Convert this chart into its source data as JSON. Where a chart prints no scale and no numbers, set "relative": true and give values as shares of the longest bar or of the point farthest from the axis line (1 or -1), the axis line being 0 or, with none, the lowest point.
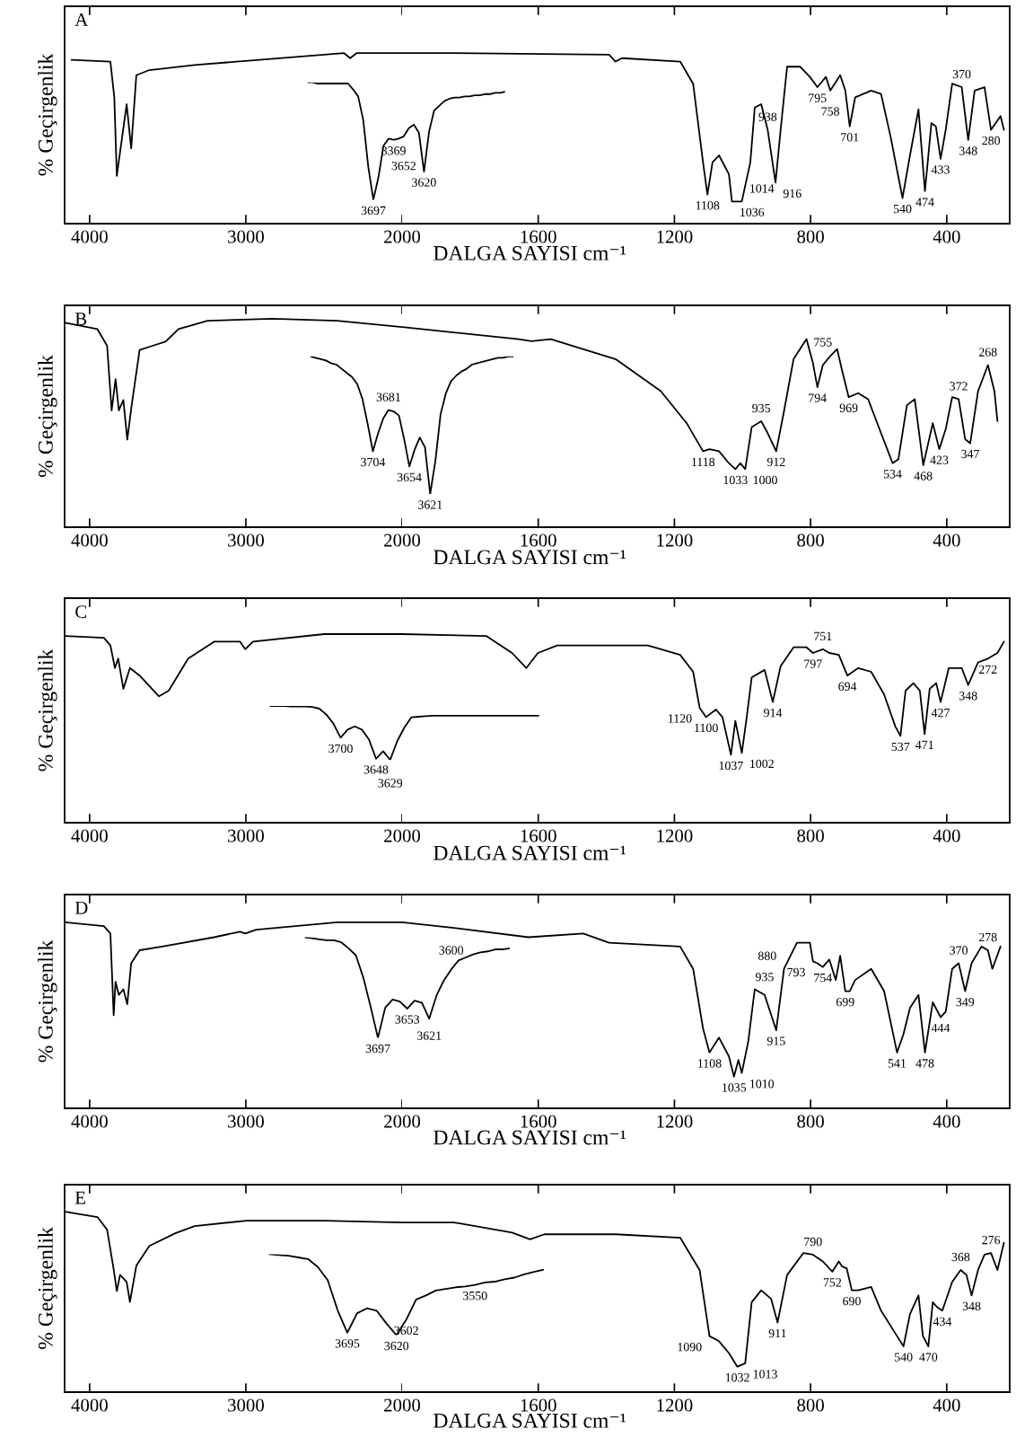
{
  "chart_data": [
    {
      "type": "line",
      "title": "A",
      "ylabel": "% Geçirgenlik",
      "relative": true,
      "xlim": [
        4160,
        2000
      ],
      "xticks": [
        4000,
        3000,
        2000
      ],
      "series": [
        {
          "color": "#000000",
          "x": [
            4116,
            3867,
            3842,
            3826,
            3763,
            3734,
            3701,
            3618,
            3328,
            2913,
            2373,
            2332,
            2290,
            2000
          ],
          "values": [
            0.96,
            0.95,
            0.74,
            0.28,
            0.7,
            0.44,
            0.87,
            0.9,
            0.93,
            0.96,
            1.0,
            0.97,
            1.0,
            1.0
          ]
        }
      ]
    },
    {
      "type": "line",
      "xlabel": "DALGA SAYISI cm⁻¹",
      "relative": true,
      "xlim": [
        2000,
        215
      ],
      "xticks": [
        1600,
        1200,
        800,
        400
      ],
      "series": [
        {
          "color": "#000000",
          "x": [
            2000,
            1848,
            1392,
            1373,
            1354,
            1183,
            1145,
            1116,
            1103,
            1088,
            1069,
            1040,
            1031,
            1002,
            977,
            964,
            945,
            926,
            903,
            888,
            869,
            831,
            802,
            780,
            755,
            742,
            713,
            698,
            685,
            669,
            622,
            593,
            565,
            530,
            508,
            483,
            464,
            445,
            432,
            418,
            403,
            384,
            356,
            337,
            318,
            289,
            270,
            242,
            232
          ],
          "values": [
            1.0,
            1.0,
            0.99,
            0.95,
            0.97,
            0.95,
            0.82,
            0.36,
            0.17,
            0.36,
            0.4,
            0.29,
            0.13,
            0.13,
            0.36,
            0.68,
            0.7,
            0.55,
            0.24,
            0.55,
            0.92,
            0.92,
            0.86,
            0.8,
            0.86,
            0.78,
            0.87,
            0.78,
            0.57,
            0.74,
            0.78,
            0.76,
            0.51,
            0.15,
            0.4,
            0.67,
            0.19,
            0.59,
            0.57,
            0.38,
            0.55,
            0.82,
            0.8,
            0.49,
            0.78,
            0.8,
            0.55,
            0.63,
            0.55
          ]
        }
      ],
      "annotations": [
        {
          "text": "1108",
          "x": 1103,
          "y": 0.17
        },
        {
          "text": "1036",
          "x": 1031,
          "y": 0.13
        },
        {
          "text": "1014",
          "x": 1002,
          "y": 0.13
        },
        {
          "text": "938",
          "x": 926,
          "y": 0.55
        },
        {
          "text": "916",
          "x": 903,
          "y": 0.24
        },
        {
          "text": "795",
          "x": 780,
          "y": 0.8
        },
        {
          "text": "758",
          "x": 742,
          "y": 0.78
        },
        {
          "text": "701",
          "x": 685,
          "y": 0.57
        },
        {
          "text": "540",
          "x": 530,
          "y": 0.15
        },
        {
          "text": "474",
          "x": 464,
          "y": 0.19
        },
        {
          "text": "433",
          "x": 418,
          "y": 0.38
        },
        {
          "text": "348",
          "x": 337,
          "y": 0.49
        },
        {
          "text": "370",
          "x": 356,
          "y": 0.8
        },
        {
          "text": "280",
          "x": 270,
          "y": 0.55
        }
      ]
    },
    {
      "type": "line",
      "relative": true,
      "categories": [
        null,
        null,
        null,
        null,
        null,
        null,
        null,
        null,
        null,
        null,
        null,
        null,
        null,
        null,
        null,
        null,
        null,
        null,
        null,
        null,
        null,
        null,
        null,
        null,
        null,
        null,
        null,
        null,
        null,
        null,
        null,
        null,
        null,
        null,
        null,
        null,
        null,
        null,
        null,
        null
      ],
      "series": [
        {
          "color": "#000000",
          "values": [
            1.0,
            1.0,
            0.99,
            0.99,
            0.99,
            0.99,
            0.99,
            0.99,
            0.99,
            0.94,
            0.88,
            0.68,
            0.28,
            0,
            0.19,
            0.46,
            0.52,
            0.51,
            0.52,
            0.54,
            0.61,
            0.64,
            0.57,
            0.24,
            0.58,
            0.76,
            0.8,
            0.84,
            0.86,
            0.87,
            0.87,
            0.88,
            0.88,
            0.89,
            0.89,
            0.9,
            0.9,
            0.91,
            0.91,
            0.92
          ]
        }
      ],
      "annotations": [
        {
          "text": "3697",
          "y": 0
        },
        {
          "text": "3369",
          "y": 0.51
        },
        {
          "text": "3652",
          "y": 0.54
        },
        {
          "text": "3620",
          "y": 0.24
        }
      ]
    },
    {
      "type": "line",
      "title": "B",
      "ylabel": "% Geçirgenlik",
      "relative": true,
      "xlim": [
        4160,
        2000
      ],
      "xticks": [
        4000,
        3000,
        2000
      ],
      "series": [
        {
          "color": "#000000",
          "x": [
            4157,
            3950,
            3888,
            3859,
            3834,
            3813,
            3784,
            3759,
            3730,
            3680,
            3597,
            3514,
            3431,
            3245,
            2830,
            2415,
            2000
          ],
          "values": [
            0.98,
            0.95,
            0.87,
            0.56,
            0.71,
            0.56,
            0.61,
            0.42,
            0.59,
            0.85,
            0.87,
            0.89,
            0.95,
            0.99,
            1.0,
            0.99,
            0.96
          ]
        }
      ]
    },
    {
      "type": "line",
      "xlabel": "DALGA SAYISI cm⁻¹",
      "relative": true,
      "xlim": [
        2000,
        215
      ],
      "xticks": [
        1600,
        1200,
        800,
        400
      ],
      "series": [
        {
          "color": "#000000",
          "x": [
            2000,
            1943,
            1658,
            1620,
            1563,
            1373,
            1240,
            1164,
            1116,
            1097,
            1069,
            1040,
            1021,
            1006,
            992,
            973,
            945,
            926,
            901,
            878,
            850,
            812,
            793,
            780,
            764,
            745,
            722,
            707,
            688,
            660,
            631,
            593,
            559,
            542,
            517,
            494,
            469,
            441,
            422,
            403,
            384,
            365,
            346,
            331,
            308,
            279,
            260,
            251
          ],
          "values": [
            1.0,
            0.99,
            0.94,
            0.93,
            0.94,
            0.84,
            0.68,
            0.52,
            0.38,
            0.39,
            0.38,
            0.32,
            0.29,
            0.32,
            0.29,
            0.5,
            0.53,
            0.47,
            0.38,
            0.58,
            0.84,
            0.94,
            0.82,
            0.7,
            0.81,
            0.85,
            0.89,
            0.78,
            0.65,
            0.67,
            0.64,
            0.47,
            0.32,
            0.34,
            0.61,
            0.64,
            0.31,
            0.52,
            0.39,
            0.49,
            0.65,
            0.64,
            0.44,
            0.42,
            0.68,
            0.81,
            0.68,
            0.53
          ]
        }
      ],
      "annotations": [
        {
          "text": "1118",
          "x": 1116,
          "y": 0.38
        },
        {
          "text": "1033",
          "x": 1021,
          "y": 0.29
        },
        {
          "text": "1000",
          "x": 992,
          "y": 0.29
        },
        {
          "text": "912",
          "x": 901,
          "y": 0.38
        },
        {
          "text": "935",
          "x": 945,
          "y": 0.53
        },
        {
          "text": "794",
          "x": 780,
          "y": 0.7
        },
        {
          "text": "969",
          "x": 688,
          "y": 0.65
        },
        {
          "text": "755",
          "x": 764,
          "y": 0.81
        },
        {
          "text": "534",
          "x": 559,
          "y": 0.32
        },
        {
          "text": "468",
          "x": 469,
          "y": 0.31
        },
        {
          "text": "423",
          "x": 422,
          "y": 0.39
        },
        {
          "text": "347",
          "x": 331,
          "y": 0.42
        },
        {
          "text": "372",
          "x": 365,
          "y": 0.64
        },
        {
          "text": "268",
          "x": 279,
          "y": 0.81
        }
      ]
    },
    {
      "type": "line",
      "relative": true,
      "categories": [
        null,
        null,
        null,
        null,
        null,
        null,
        null,
        null,
        null,
        null,
        null,
        null,
        null,
        null,
        null,
        null,
        null,
        null,
        null,
        null,
        null,
        null,
        null,
        null,
        null,
        null,
        null,
        null,
        null,
        null,
        null,
        null,
        null,
        null,
        null,
        null,
        null,
        null,
        null,
        null
      ],
      "series": [
        {
          "color": "#000000",
          "values": [
            1.0,
            0.99,
            0.98,
            0.97,
            0.95,
            0.94,
            0.91,
            0.88,
            0.85,
            0.8,
            0.69,
            0.51,
            0.31,
            0.44,
            0.55,
            0.61,
            0.6,
            0.57,
            0.4,
            0.2,
            0.32,
            0.41,
            0.34,
            0,
            0.24,
            0.58,
            0.73,
            0.82,
            0.86,
            0.89,
            0.91,
            0.94,
            0.95,
            0.96,
            0.97,
            0.98,
            0.99,
            0.99,
            1.0,
            1.0
          ]
        }
      ],
      "annotations": [
        {
          "text": "3704",
          "y": 0.31
        },
        {
          "text": "3681",
          "y": 0.61
        },
        {
          "text": "3654",
          "y": 0.2
        },
        {
          "text": "3621",
          "y": 0
        }
      ]
    },
    {
      "type": "line",
      "title": "C",
      "ylabel": "% Geçirgenlik",
      "relative": true,
      "xlim": [
        4160,
        2000
      ],
      "xticks": [
        4000,
        3000,
        2000
      ],
      "series": [
        {
          "color": "#000000",
          "x": [
            4157,
            3909,
            3867,
            3838,
            3817,
            3784,
            3742,
            3680,
            3556,
            3494,
            3369,
            3203,
            3037,
            3004,
            2954,
            2498,
            2000
          ],
          "values": [
            0.99,
            0.98,
            0.94,
            0.82,
            0.87,
            0.71,
            0.82,
            0.78,
            0.67,
            0.7,
            0.87,
            0.96,
            0.96,
            0.92,
            0.96,
            1.0,
            1.0
          ]
        }
      ]
    },
    {
      "type": "line",
      "xlabel": "DALGA SAYISI cm⁻¹",
      "relative": true,
      "xlim": [
        2000,
        215
      ],
      "xticks": [
        1600,
        1200,
        800,
        400
      ],
      "series": [
        {
          "color": "#000000",
          "x": [
            2000,
            1753,
            1677,
            1635,
            1601,
            1544,
            1278,
            1183,
            1145,
            1126,
            1107,
            1078,
            1059,
            1034,
            1021,
            1002,
            989,
            973,
            935,
            911,
            888,
            850,
            812,
            793,
            764,
            745,
            717,
            692,
            660,
            622,
            584,
            551,
            536,
            521,
            498,
            479,
            465,
            450,
            431,
            418,
            394,
            356,
            337,
            308,
            279,
            251,
            232
          ],
          "values": [
            1.0,
            0.99,
            0.9,
            0.82,
            0.9,
            0.94,
            0.94,
            0.89,
            0.8,
            0.61,
            0.56,
            0.6,
            0.56,
            0.36,
            0.54,
            0.37,
            0.54,
            0.77,
            0.81,
            0.64,
            0.83,
            0.93,
            0.93,
            0.9,
            0.92,
            0.9,
            0.89,
            0.78,
            0.82,
            0.8,
            0.68,
            0.51,
            0.46,
            0.7,
            0.74,
            0.7,
            0.47,
            0.71,
            0.74,
            0.64,
            0.82,
            0.82,
            0.73,
            0.85,
            0.87,
            0.9,
            0.96
          ]
        }
      ],
      "annotations": [
        {
          "text": "1120",
          "x": 1126,
          "y": 0.61
        },
        {
          "text": "1100",
          "x": 1107,
          "y": 0.56
        },
        {
          "text": "1037",
          "x": 1034,
          "y": 0.36
        },
        {
          "text": "1002",
          "x": 1002,
          "y": 0.37
        },
        {
          "text": "914",
          "x": 911,
          "y": 0.64
        },
        {
          "text": "797",
          "x": 793,
          "y": 0.9
        },
        {
          "text": "751",
          "x": 764,
          "y": 0.92
        },
        {
          "text": "694",
          "x": 692,
          "y": 0.78
        },
        {
          "text": "537",
          "x": 536,
          "y": 0.46
        },
        {
          "text": "471",
          "x": 465,
          "y": 0.47
        },
        {
          "text": "427",
          "x": 418,
          "y": 0.64
        },
        {
          "text": "348",
          "x": 337,
          "y": 0.73
        },
        {
          "text": "272",
          "x": 279,
          "y": 0.87
        }
      ]
    },
    {
      "type": "line",
      "relative": true,
      "categories": [
        null,
        null,
        null,
        null,
        null,
        null,
        null,
        null,
        null,
        null,
        null,
        null,
        null,
        null,
        null,
        null,
        null,
        null,
        null,
        null,
        null,
        null,
        null,
        null,
        null,
        null,
        null,
        null,
        null,
        null,
        null,
        null,
        null,
        null,
        null,
        null,
        null,
        null,
        null
      ],
      "series": [
        {
          "color": "#000000",
          "values": [
            1.0,
            1.0,
            1.0,
            0.99,
            0.99,
            0.99,
            0.98,
            0.95,
            0.84,
            0.67,
            0.41,
            0.56,
            0.62,
            0.56,
            0.38,
            0.02,
            0.16,
            0,
            0.35,
            0.6,
            0.79,
            0.8,
            0.81,
            0.82,
            0.82,
            0.82,
            0.82,
            0.82,
            0.82,
            0.82,
            0.82,
            0.82,
            0.82,
            0.82,
            0.82,
            0.82,
            0.82,
            0.82,
            0.82
          ]
        }
      ],
      "annotations": [
        {
          "text": "3700",
          "y": 0.41
        },
        {
          "text": "3648",
          "y": 0.02
        },
        {
          "text": "3629",
          "y": 0
        }
      ]
    },
    {
      "type": "line",
      "title": "D",
      "ylabel": "% Geçirgenlik",
      "relative": true,
      "xlim": [
        4160,
        2000
      ],
      "xticks": [
        4000,
        3000,
        2000
      ],
      "series": [
        {
          "color": "#000000",
          "x": [
            4157,
            3909,
            3867,
            3846,
            3834,
            3813,
            3784,
            3759,
            3734,
            3680,
            3535,
            3203,
            3037,
            3004,
            2934,
            2415,
            2000
          ],
          "values": [
            1.0,
            0.98,
            0.94,
            0.5,
            0.68,
            0.61,
            0.64,
            0.56,
            0.78,
            0.85,
            0.87,
            0.92,
            0.95,
            0.94,
            0.96,
            1.0,
            1.0
          ]
        }
      ]
    },
    {
      "type": "line",
      "xlabel": "DALGA SAYISI cm⁻¹",
      "relative": true,
      "xlim": [
        2000,
        215
      ],
      "xticks": [
        1600,
        1200,
        800,
        400
      ],
      "series": [
        {
          "color": "#000000",
          "x": [
            2000,
            1848,
            1629,
            1468,
            1392,
            1183,
            1145,
            1116,
            1097,
            1069,
            1040,
            1025,
            1012,
            1002,
            983,
            964,
            935,
            901,
            878,
            840,
            802,
            793,
            780,
            764,
            745,
            726,
            713,
            698,
            685,
            669,
            622,
            584,
            546,
            527,
            508,
            483,
            464,
            441,
            418,
            403,
            384,
            365,
            346,
            327,
            298,
            279,
            266,
            242
          ],
          "values": [
            1.0,
            0.97,
            0.92,
            0.94,
            0.89,
            0.87,
            0.75,
            0.43,
            0.3,
            0.38,
            0.28,
            0.17,
            0.26,
            0.19,
            0.36,
            0.64,
            0.61,
            0.42,
            0.75,
            0.89,
            0.89,
            0.79,
            0.78,
            0.76,
            0.8,
            0.69,
            0.82,
            0.63,
            0.63,
            0.69,
            0.75,
            0.63,
            0.3,
            0.4,
            0.54,
            0.61,
            0.3,
            0.57,
            0.49,
            0.52,
            0.75,
            0.78,
            0.63,
            0.78,
            0.87,
            0.85,
            0.75,
            0.87
          ]
        }
      ],
      "annotations": [
        {
          "text": "1108",
          "x": 1097,
          "y": 0.3
        },
        {
          "text": "1035",
          "x": 1025,
          "y": 0.17
        },
        {
          "text": "1010",
          "x": 1002,
          "y": 0.19
        },
        {
          "text": "915",
          "x": 901,
          "y": 0.42
        },
        {
          "text": "935",
          "x": 935,
          "y": 0.61
        },
        {
          "text": "880",
          "x": 878,
          "y": 0.75
        },
        {
          "text": "793",
          "x": 793,
          "y": 0.79
        },
        {
          "text": "754",
          "x": 764,
          "y": 0.76
        },
        {
          "text": "699",
          "x": 698,
          "y": 0.63
        },
        {
          "text": "541",
          "x": 546,
          "y": 0.3
        },
        {
          "text": "478",
          "x": 464,
          "y": 0.3
        },
        {
          "text": "444",
          "x": 418,
          "y": 0.49
        },
        {
          "text": "349",
          "x": 346,
          "y": 0.63
        },
        {
          "text": "370",
          "x": 365,
          "y": 0.78
        },
        {
          "text": "278",
          "x": 279,
          "y": 0.85
        }
      ]
    },
    {
      "type": "line",
      "relative": true,
      "categories": [
        null,
        null,
        null,
        null,
        null,
        null,
        null,
        null,
        null,
        null,
        null,
        null,
        null,
        null,
        null,
        null,
        null,
        null,
        null,
        null,
        null,
        null,
        null,
        null,
        null,
        null,
        null,
        null,
        null
      ],
      "series": [
        {
          "color": "#000000",
          "values": [
            1.0,
            0.99,
            0.98,
            0.97,
            0.97,
            0.95,
            0.89,
            0.82,
            0.6,
            0.31,
            0,
            0.3,
            0.38,
            0.36,
            0.29,
            0.37,
            0.35,
            0.19,
            0.42,
            0.57,
            0.68,
            0.77,
            0.8,
            0.83,
            0.85,
            0.86,
            0.88,
            0.88,
            0.89
          ]
        }
      ],
      "annotations": [
        {
          "text": "3697",
          "y": 0
        },
        {
          "text": "3653",
          "y": 0.29
        },
        {
          "text": "3621",
          "y": 0.19
        },
        {
          "text": "3600",
          "y": 0.68
        }
      ]
    },
    {
      "type": "line",
      "title": "E",
      "ylabel": "% Geçirgenlik",
      "relative": true,
      "xlim": [
        4160,
        2000
      ],
      "xticks": [
        4000,
        3000,
        2000
      ],
      "series": [
        {
          "color": "#000000",
          "x": [
            4157,
            3950,
            3888,
            3846,
            3826,
            3805,
            3763,
            3742,
            3701,
            3618,
            3452,
            3328,
            2996,
            2498,
            2000
          ],
          "values": [
            1.0,
            0.97,
            0.9,
            0.68,
            0.56,
            0.65,
            0.61,
            0.5,
            0.7,
            0.81,
            0.88,
            0.92,
            0.95,
            0.95,
            0.94
          ]
        }
      ]
    },
    {
      "type": "line",
      "xlabel": "DALGA SAYISI cm⁻¹",
      "relative": true,
      "xlim": [
        2000,
        215
      ],
      "xticks": [
        1600,
        1200,
        800,
        400
      ],
      "series": [
        {
          "color": "#000000",
          "x": [
            2000,
            1848,
            1677,
            1624,
            1582,
            1373,
            1183,
            1126,
            1097,
            1069,
            1040,
            1015,
            992,
            973,
            945,
            916,
            897,
            869,
            821,
            793,
            764,
            736,
            717,
            707,
            694,
            679,
            660,
            622,
            593,
            546,
            527,
            508,
            483,
            470,
            454,
            441,
            428,
            413,
            384,
            359,
            342,
            327,
            308,
            289,
            270,
            251,
            232
          ],
          "values": [
            1.0,
            1.0,
            0.94,
            0.9,
            0.93,
            0.93,
            0.91,
            0.72,
            0.33,
            0.3,
            0.23,
            0.15,
            0.17,
            0.53,
            0.6,
            0.55,
            0.41,
            0.69,
            0.82,
            0.81,
            0.77,
            0.71,
            0.77,
            0.74,
            0.73,
            0.6,
            0.6,
            0.62,
            0.48,
            0.33,
            0.27,
            0.46,
            0.57,
            0.33,
            0.27,
            0.53,
            0.5,
            0.48,
            0.65,
            0.72,
            0.69,
            0.57,
            0.72,
            0.81,
            0.82,
            0.72,
            0.88
          ]
        }
      ],
      "annotations": [
        {
          "text": "1090",
          "x": 1097,
          "y": 0.33
        },
        {
          "text": "1032",
          "x": 1015,
          "y": 0.15
        },
        {
          "text": "1013",
          "x": 992,
          "y": 0.17
        },
        {
          "text": "911",
          "x": 897,
          "y": 0.41
        },
        {
          "text": "790",
          "x": 793,
          "y": 0.81
        },
        {
          "text": "752",
          "x": 736,
          "y": 0.71
        },
        {
          "text": "690",
          "x": 679,
          "y": 0.6
        },
        {
          "text": "540",
          "x": 527,
          "y": 0.27
        },
        {
          "text": "470",
          "x": 454,
          "y": 0.27
        },
        {
          "text": "434",
          "x": 413,
          "y": 0.48
        },
        {
          "text": "348",
          "x": 327,
          "y": 0.57
        },
        {
          "text": "368",
          "x": 359,
          "y": 0.72
        },
        {
          "text": "276",
          "x": 270,
          "y": 0.82
        }
      ]
    },
    {
      "type": "line",
      "relative": true,
      "categories": [
        null,
        null,
        null,
        null,
        null,
        null,
        null,
        null,
        null,
        null,
        null,
        null,
        null,
        null,
        null,
        null,
        null,
        null,
        null,
        null,
        null,
        null,
        null,
        null,
        null,
        null,
        null,
        null,
        null
      ],
      "series": [
        {
          "color": "#000000",
          "values": [
            1.0,
            0.99,
            0.98,
            0.96,
            0.94,
            0.84,
            0.68,
            0.31,
            0.03,
            0.27,
            0.33,
            0.3,
            0.14,
            0,
            0.19,
            0.44,
            0.49,
            0.55,
            0.57,
            0.59,
            0.6,
            0.62,
            0.65,
            0.66,
            0.69,
            0.71,
            0.75,
            0.78,
            0.81
          ]
        }
      ],
      "annotations": [
        {
          "text": "3695",
          "y": 0.03
        },
        {
          "text": "3620",
          "y": 0
        },
        {
          "text": "3602",
          "y": 0.19
        },
        {
          "text": "3550",
          "y": 0.62
        }
      ]
    }
  ]
}
